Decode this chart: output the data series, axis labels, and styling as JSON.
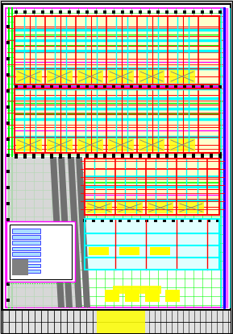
{
  "bg_color": "#c8c8c8",
  "drawing_bg": "#ffffff",
  "figsize": [
    2.89,
    4.15
  ],
  "dpi": 100,
  "colors": {
    "green": "#00ff00",
    "red": "#ff0000",
    "cyan": "#00ffff",
    "yellow": "#ffff00",
    "blue": "#0000ff",
    "gray": "#909090",
    "gray_dark": "#606060",
    "black": "#000000",
    "magenta": "#ff00ff",
    "white": "#ffffff",
    "light_yellow": "#ffffcc",
    "light_gray": "#d0d0d0"
  }
}
